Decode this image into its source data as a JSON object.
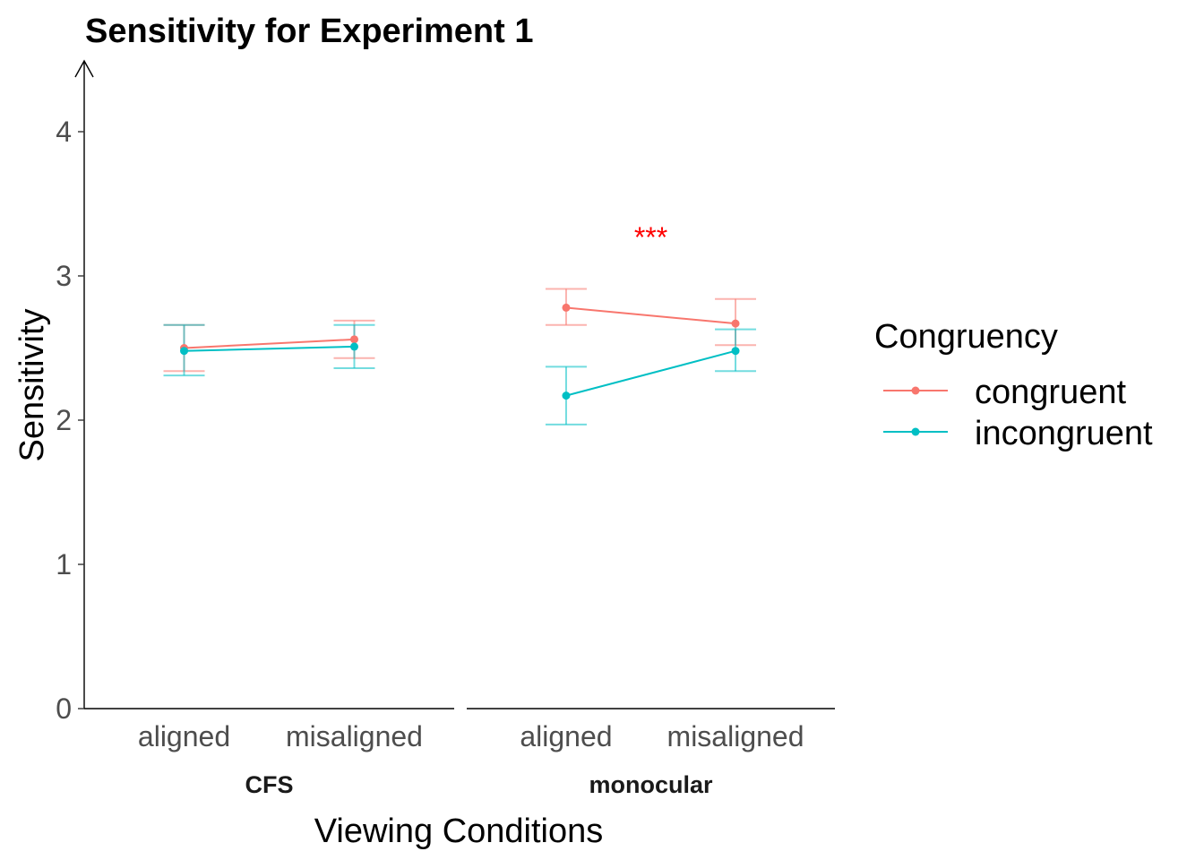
{
  "chart_data": {
    "type": "line",
    "title": "Sensitivity for Experiment 1",
    "xlabel": "Viewing Conditions",
    "ylabel": "Sensitivity",
    "ylim": [
      0,
      4.4
    ],
    "yticks": [
      0,
      1,
      2,
      3,
      4
    ],
    "grid": false,
    "legend": {
      "title": "Congruency",
      "placement": "right"
    },
    "categories": [
      "aligned",
      "misaligned"
    ],
    "panels": [
      {
        "facet_label": "CFS",
        "series": [
          {
            "name": "congruent",
            "color": "#F8766D",
            "values": [
              2.5,
              2.56
            ],
            "error_low": [
              2.34,
              2.43
            ],
            "error_high": [
              2.66,
              2.69
            ]
          },
          {
            "name": "incongruent",
            "color": "#00BFC4",
            "values": [
              2.48,
              2.51
            ],
            "error_low": [
              2.31,
              2.36
            ],
            "error_high": [
              2.66,
              2.66
            ]
          }
        ],
        "annotation": ""
      },
      {
        "facet_label": "monocular",
        "series": [
          {
            "name": "congruent",
            "color": "#F8766D",
            "values": [
              2.78,
              2.67
            ],
            "error_low": [
              2.66,
              2.52
            ],
            "error_high": [
              2.91,
              2.84
            ]
          },
          {
            "name": "incongruent",
            "color": "#00BFC4",
            "values": [
              2.17,
              2.48
            ],
            "error_low": [
              1.97,
              2.34
            ],
            "error_high": [
              2.37,
              2.63
            ]
          }
        ],
        "annotation": "***",
        "annotation_color": "#FF0000"
      }
    ]
  }
}
